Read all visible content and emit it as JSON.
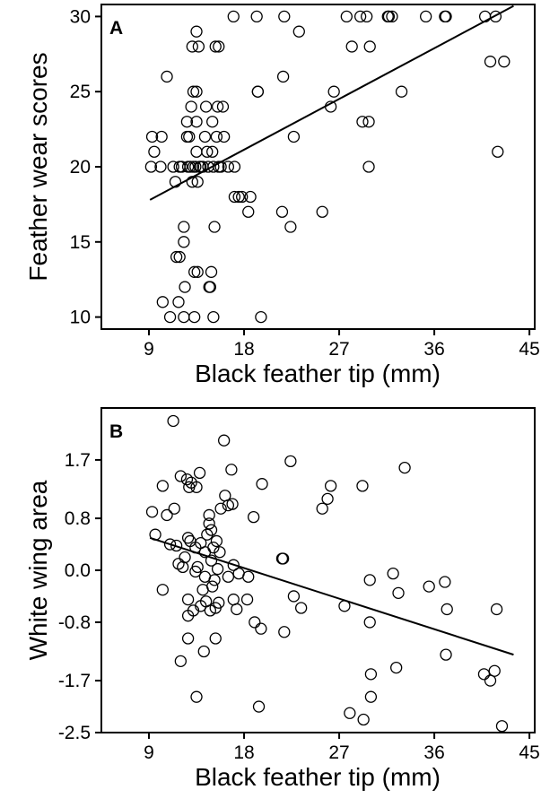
{
  "chart_data": [
    {
      "type": "scatter",
      "panel_label": "A",
      "title": "",
      "xlabel": "Black feather tip (mm)",
      "ylabel": "Feather wear scores",
      "xlim": [
        4.5,
        45.5
      ],
      "ylim": [
        9.2,
        30.8
      ],
      "xticks": [
        9,
        18,
        27,
        36,
        45
      ],
      "yticks": [
        10,
        15,
        20,
        25,
        30
      ],
      "ytick_labels": [
        "10",
        "15",
        "20",
        "25",
        "30"
      ],
      "grid": false,
      "legend": "none",
      "fit_line": {
        "x": [
          9.1,
          43.5
        ],
        "y": [
          17.8,
          30.7
        ]
      },
      "points": [
        [
          9.2,
          20
        ],
        [
          9.3,
          22
        ],
        [
          9.5,
          21
        ],
        [
          10.1,
          20
        ],
        [
          10.2,
          22
        ],
        [
          10.3,
          11
        ],
        [
          10.7,
          26
        ],
        [
          11.0,
          10
        ],
        [
          11.3,
          20
        ],
        [
          11.5,
          19
        ],
        [
          11.6,
          14
        ],
        [
          11.8,
          11
        ],
        [
          11.9,
          14
        ],
        [
          11.9,
          20
        ],
        [
          12.1,
          20
        ],
        [
          12.3,
          10
        ],
        [
          12.3,
          16
        ],
        [
          12.3,
          15
        ],
        [
          12.4,
          12
        ],
        [
          12.6,
          22
        ],
        [
          12.6,
          23
        ],
        [
          12.7,
          20
        ],
        [
          12.8,
          22
        ],
        [
          12.9,
          20
        ],
        [
          13.0,
          24
        ],
        [
          13.1,
          28
        ],
        [
          13.1,
          19
        ],
        [
          13.2,
          25
        ],
        [
          13.2,
          20
        ],
        [
          13.3,
          13
        ],
        [
          13.3,
          10
        ],
        [
          13.4,
          20
        ],
        [
          13.5,
          23
        ],
        [
          13.5,
          21
        ],
        [
          13.5,
          25
        ],
        [
          13.5,
          29
        ],
        [
          13.6,
          13
        ],
        [
          13.6,
          19
        ],
        [
          13.7,
          28
        ],
        [
          13.8,
          20
        ],
        [
          13.9,
          20
        ],
        [
          14.1,
          20
        ],
        [
          14.3,
          22
        ],
        [
          14.4,
          24
        ],
        [
          14.5,
          21
        ],
        [
          14.6,
          20
        ],
        [
          14.7,
          12
        ],
        [
          14.8,
          12
        ],
        [
          14.9,
          13
        ],
        [
          15.0,
          23
        ],
        [
          15.0,
          21
        ],
        [
          15.1,
          20
        ],
        [
          15.1,
          10
        ],
        [
          15.2,
          16
        ],
        [
          15.3,
          28
        ],
        [
          15.4,
          22
        ],
        [
          15.5,
          24
        ],
        [
          15.6,
          28
        ],
        [
          15.6,
          20
        ],
        [
          15.8,
          20
        ],
        [
          16.0,
          24
        ],
        [
          16.1,
          22
        ],
        [
          16.5,
          20
        ],
        [
          17.0,
          30
        ],
        [
          17.1,
          20
        ],
        [
          17.1,
          18
        ],
        [
          17.5,
          18
        ],
        [
          17.8,
          18
        ],
        [
          18.4,
          17
        ],
        [
          18.6,
          18
        ],
        [
          19.2,
          30
        ],
        [
          19.3,
          25
        ],
        [
          19.3,
          25
        ],
        [
          19.6,
          10
        ],
        [
          21.6,
          17
        ],
        [
          21.7,
          26
        ],
        [
          21.8,
          30
        ],
        [
          22.4,
          16
        ],
        [
          22.7,
          22
        ],
        [
          23.2,
          29
        ],
        [
          25.4,
          17
        ],
        [
          26.2,
          24
        ],
        [
          26.5,
          25
        ],
        [
          27.7,
          30
        ],
        [
          28.2,
          28
        ],
        [
          29.0,
          30
        ],
        [
          29.2,
          23
        ],
        [
          29.6,
          30
        ],
        [
          29.8,
          23
        ],
        [
          29.8,
          20
        ],
        [
          29.9,
          28
        ],
        [
          31.6,
          30
        ],
        [
          31.7,
          30
        ],
        [
          32.0,
          30
        ],
        [
          32.9,
          25
        ],
        [
          35.2,
          30
        ],
        [
          37.0,
          30
        ],
        [
          37.1,
          30
        ],
        [
          40.8,
          30
        ],
        [
          41.3,
          27
        ],
        [
          41.8,
          30
        ],
        [
          42.0,
          21
        ],
        [
          42.6,
          27
        ]
      ]
    },
    {
      "type": "scatter",
      "panel_label": "B",
      "title": "",
      "xlabel": "Black feather tip (mm)",
      "ylabel": "White wing area",
      "xlim": [
        4.5,
        45.5
      ],
      "ylim": [
        -2.5,
        2.5
      ],
      "xticks": [
        9,
        18,
        27,
        36,
        45
      ],
      "yticks": [
        -2.5,
        -1.7,
        -0.8,
        0.0,
        0.8,
        1.7
      ],
      "ytick_labels": [
        "-2.5",
        "-1.7",
        "-0.8",
        "0.0",
        "0.8",
        "1.7"
      ],
      "grid": false,
      "legend": "none",
      "fit_line": {
        "x": [
          9.1,
          43.5
        ],
        "y": [
          0.5,
          -1.3
        ]
      },
      "points": [
        [
          9.3,
          0.9
        ],
        [
          9.6,
          0.55
        ],
        [
          10.3,
          1.3
        ],
        [
          10.3,
          -0.3
        ],
        [
          10.7,
          0.85
        ],
        [
          11.0,
          0.4
        ],
        [
          11.3,
          2.3
        ],
        [
          11.4,
          0.95
        ],
        [
          11.6,
          0.38
        ],
        [
          11.8,
          0.1
        ],
        [
          12.0,
          1.45
        ],
        [
          12.0,
          -1.4
        ],
        [
          12.2,
          0.05
        ],
        [
          12.4,
          0.2
        ],
        [
          12.6,
          1.4
        ],
        [
          12.7,
          0.5
        ],
        [
          12.7,
          -0.45
        ],
        [
          12.7,
          -0.7
        ],
        [
          12.7,
          -1.05
        ],
        [
          12.8,
          1.28
        ],
        [
          12.9,
          0.45
        ],
        [
          13.0,
          1.35
        ],
        [
          13.2,
          -0.62
        ],
        [
          13.4,
          -0.02
        ],
        [
          13.4,
          0.35
        ],
        [
          13.5,
          1.28
        ],
        [
          13.5,
          -1.95
        ],
        [
          13.6,
          0.05
        ],
        [
          13.8,
          1.5
        ],
        [
          13.9,
          0.42
        ],
        [
          13.9,
          -0.55
        ],
        [
          14.1,
          -0.3
        ],
        [
          14.2,
          -1.25
        ],
        [
          14.3,
          0.28
        ],
        [
          14.3,
          -0.1
        ],
        [
          14.4,
          -0.48
        ],
        [
          14.5,
          0.55
        ],
        [
          14.7,
          0.85
        ],
        [
          14.7,
          0.72
        ],
        [
          14.8,
          -0.62
        ],
        [
          14.9,
          0.62
        ],
        [
          14.9,
          0.15
        ],
        [
          15.0,
          -0.25
        ],
        [
          15.1,
          0.35
        ],
        [
          15.2,
          -0.15
        ],
        [
          15.3,
          -0.58
        ],
        [
          15.3,
          -1.05
        ],
        [
          15.4,
          0.45
        ],
        [
          15.5,
          0.02
        ],
        [
          15.6,
          -0.5
        ],
        [
          15.7,
          0.28
        ],
        [
          15.8,
          0.95
        ],
        [
          16.1,
          2.0
        ],
        [
          16.2,
          1.15
        ],
        [
          16.5,
          1.0
        ],
        [
          16.5,
          -0.1
        ],
        [
          16.8,
          1.55
        ],
        [
          16.9,
          1.02
        ],
        [
          17.0,
          0.08
        ],
        [
          17.0,
          -0.45
        ],
        [
          17.3,
          -0.6
        ],
        [
          17.5,
          -0.05
        ],
        [
          18.3,
          -0.45
        ],
        [
          18.4,
          -0.1
        ],
        [
          18.9,
          0.82
        ],
        [
          19.0,
          -0.8
        ],
        [
          19.4,
          -2.1
        ],
        [
          19.6,
          -0.9
        ],
        [
          19.7,
          1.33
        ],
        [
          21.6,
          0.18
        ],
        [
          21.7,
          0.18
        ],
        [
          21.8,
          -0.95
        ],
        [
          22.4,
          1.68
        ],
        [
          22.7,
          -0.4
        ],
        [
          23.4,
          -0.58
        ],
        [
          25.4,
          0.95
        ],
        [
          25.9,
          1.1
        ],
        [
          26.2,
          1.3
        ],
        [
          27.5,
          -0.55
        ],
        [
          28.0,
          -2.2
        ],
        [
          29.2,
          1.3
        ],
        [
          29.3,
          -2.3
        ],
        [
          29.9,
          -0.8
        ],
        [
          29.9,
          -0.15
        ],
        [
          30.0,
          -1.6
        ],
        [
          30.0,
          -1.95
        ],
        [
          32.1,
          -0.05
        ],
        [
          32.4,
          -1.5
        ],
        [
          32.6,
          -0.35
        ],
        [
          33.2,
          1.58
        ],
        [
          35.5,
          -0.25
        ],
        [
          37.0,
          -0.18
        ],
        [
          37.2,
          -0.6
        ],
        [
          37.1,
          -1.3
        ],
        [
          40.7,
          -1.6
        ],
        [
          41.3,
          -1.7
        ],
        [
          41.7,
          -1.55
        ],
        [
          41.9,
          -0.6
        ],
        [
          42.4,
          -2.4
        ]
      ]
    }
  ]
}
